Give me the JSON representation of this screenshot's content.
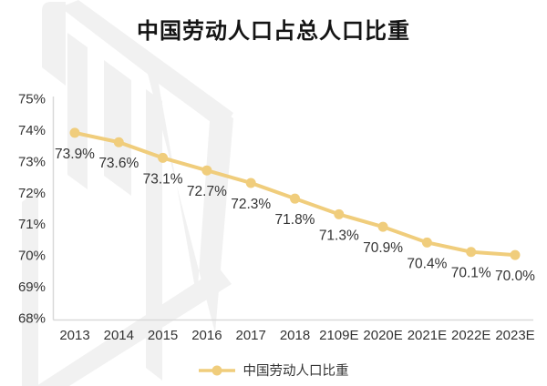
{
  "title": "中国劳动人口占总人口比重",
  "colors": {
    "line": "#F0CD7C",
    "axis": "#D9D9D9",
    "title": "#141414",
    "text": "#333333",
    "watermark": "#F1F1F1"
  },
  "legend": {
    "label": "中国劳动人口比重"
  },
  "chart_data": {
    "type": "line",
    "title": "中国劳动人口占总人口比重",
    "categories": [
      "2013",
      "2014",
      "2015",
      "2016",
      "2017",
      "2018",
      "2109E",
      "2020E",
      "2021E",
      "2022E",
      "2023E"
    ],
    "values": [
      73.9,
      73.6,
      73.1,
      72.7,
      72.3,
      71.8,
      71.3,
      70.9,
      70.4,
      70.1,
      70.0
    ],
    "data_labels": [
      "73.9%",
      "73.6%",
      "73.1%",
      "72.7%",
      "72.3%",
      "71.8%",
      "71.3%",
      "70.9%",
      "70.4%",
      "70.1%",
      "70.0%"
    ],
    "y_ticks": [
      {
        "value": 75,
        "label": "75%"
      },
      {
        "value": 74,
        "label": "74%"
      },
      {
        "value": 73,
        "label": "73%"
      },
      {
        "value": 72,
        "label": "72%"
      },
      {
        "value": 71,
        "label": "71%"
      },
      {
        "value": 70,
        "label": "70%"
      },
      {
        "value": 69,
        "label": "69%"
      },
      {
        "value": 68,
        "label": "68%"
      }
    ],
    "ylim": [
      68,
      75
    ],
    "xlabel": "",
    "ylabel": "",
    "grid": false,
    "legend": [
      "中国劳动人口比重"
    ],
    "legend_position": "bottom",
    "line_color": "#F0CD7C",
    "axis_color": "#D9D9D9"
  }
}
